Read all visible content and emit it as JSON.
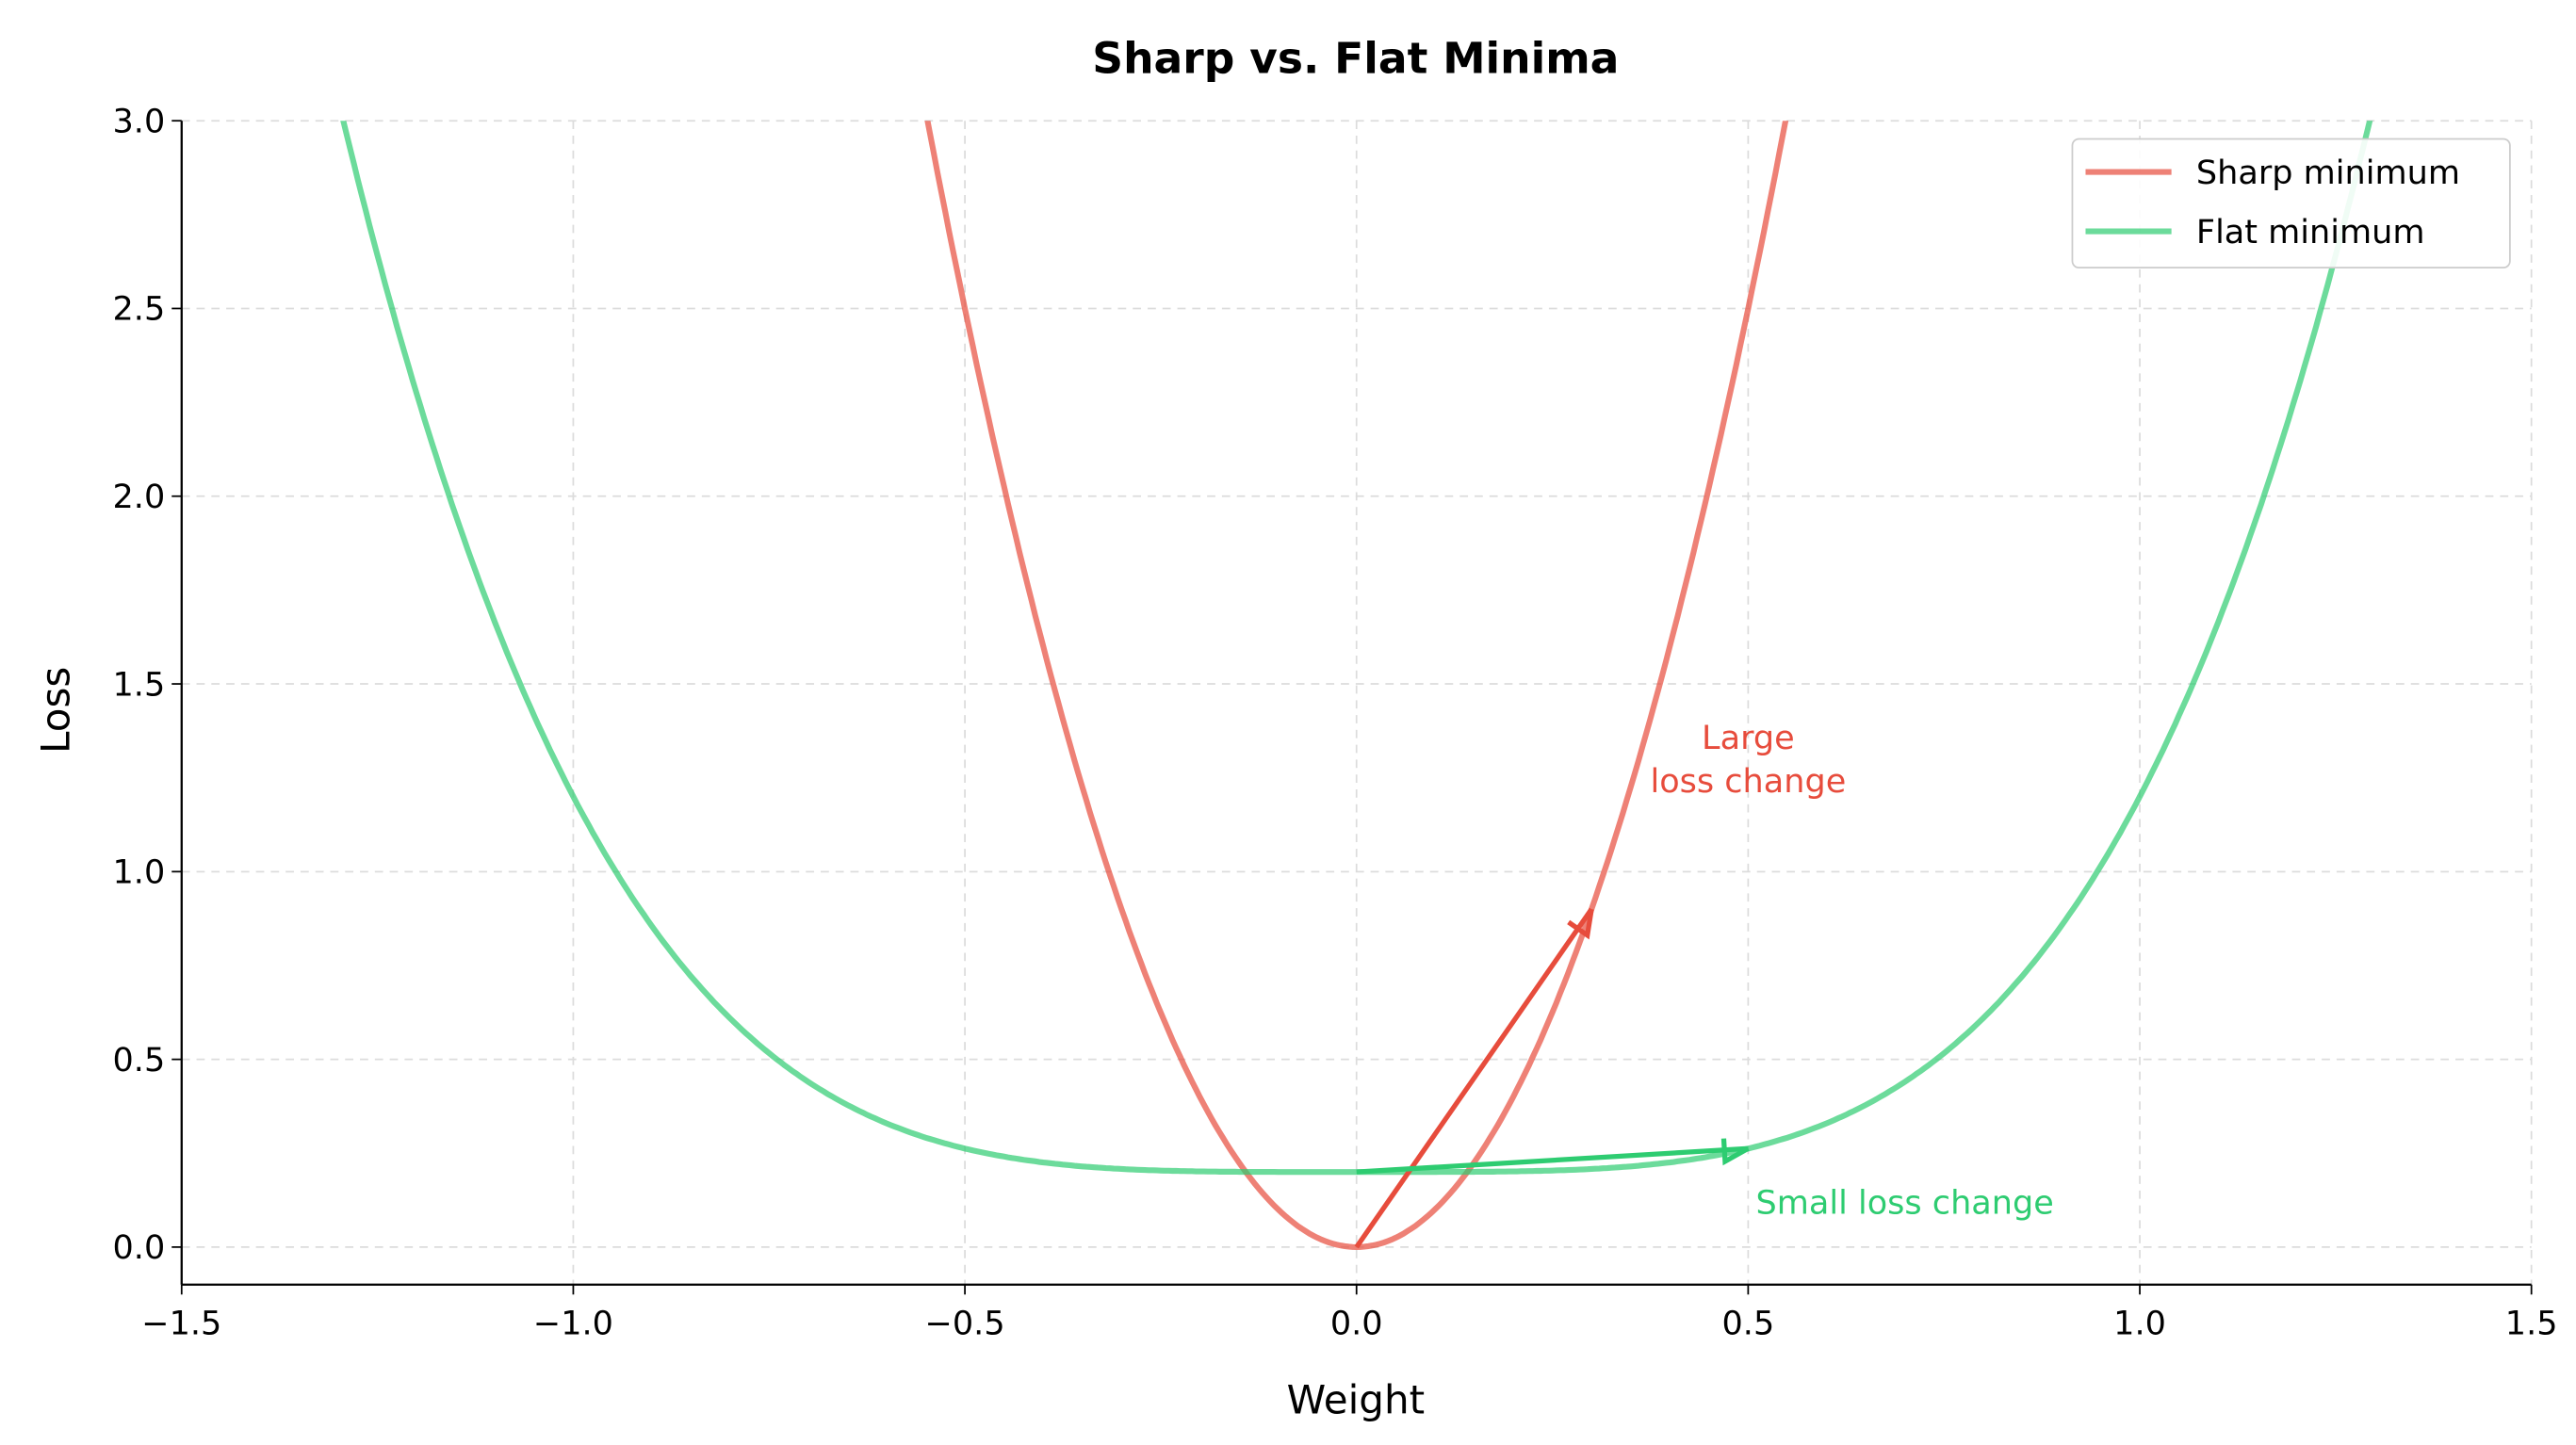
{
  "chart_data": {
    "type": "line",
    "title": "Sharp vs. Flat Minima",
    "xlabel": "Weight",
    "ylabel": "Loss",
    "xlim": [
      -1.5,
      1.5
    ],
    "ylim": [
      -0.1,
      3.0
    ],
    "xticks": [
      -1.5,
      -1.0,
      -0.5,
      0.0,
      0.5,
      1.0,
      1.5
    ],
    "xtick_labels": [
      "−1.5",
      "−1.0",
      "−0.5",
      "0.0",
      "0.5",
      "1.0",
      "1.5"
    ],
    "yticks": [
      0.0,
      0.5,
      1.0,
      1.5,
      2.0,
      2.5,
      3.0
    ],
    "ytick_labels": [
      "0.0",
      "0.5",
      "1.0",
      "1.5",
      "2.0",
      "2.5",
      "3.0"
    ],
    "grid": true,
    "legend_position": "top-right",
    "series": [
      {
        "name": "Sharp minimum",
        "formula": "10*x^2",
        "color": "#e74c3c",
        "x": [
          -0.55,
          -0.5,
          -0.4,
          -0.3,
          -0.2,
          -0.1,
          0,
          0.1,
          0.2,
          0.3,
          0.4,
          0.5,
          0.55
        ],
        "y": [
          3.025,
          2.5,
          1.6,
          0.9,
          0.4,
          0.1,
          0,
          0.1,
          0.4,
          0.9,
          1.6,
          2.5,
          3.025
        ]
      },
      {
        "name": "Flat minimum",
        "formula": "x^4 + 0.2",
        "color": "#2ecc71",
        "x": [
          -1.3,
          -1.2,
          -1.0,
          -0.8,
          -0.6,
          -0.4,
          -0.2,
          0,
          0.2,
          0.4,
          0.6,
          0.8,
          1.0,
          1.2,
          1.3
        ],
        "y": [
          3.056,
          2.274,
          1.2,
          0.61,
          0.33,
          0.226,
          0.202,
          0.2,
          0.202,
          0.226,
          0.33,
          0.61,
          1.2,
          2.274,
          3.056
        ]
      }
    ],
    "annotations": [
      {
        "text_lines": [
          "Large",
          "loss change"
        ],
        "color": "#e74c3c",
        "text_at": [
          0.5,
          1.3
        ],
        "arrow_from": [
          0.0,
          0.0
        ],
        "arrow_to": [
          0.3,
          0.9
        ]
      },
      {
        "text_lines": [
          "Small loss change"
        ],
        "color": "#2ecc71",
        "text_at": [
          0.7,
          0.12
        ],
        "arrow_from": [
          0.0,
          0.2
        ],
        "arrow_to": [
          0.5,
          0.2625
        ]
      }
    ]
  }
}
